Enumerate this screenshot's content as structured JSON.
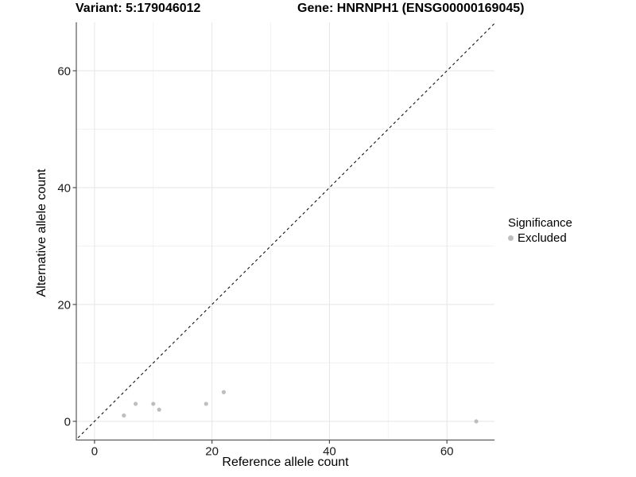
{
  "chart_data": {
    "type": "scatter",
    "title_left": "Variant: 5:179046012",
    "title_right": "Gene: HNRNPH1 (ENSG00000169045)",
    "xlabel": "Reference allele count",
    "ylabel": "Alternative allele count",
    "x_ticks": [
      0,
      20,
      40,
      60
    ],
    "x_minor_ticks": [
      10,
      30,
      50
    ],
    "y_ticks": [
      0,
      20,
      40,
      60
    ],
    "y_minor_ticks": [
      10,
      30,
      50
    ],
    "xlim": [
      -3.1,
      68.1
    ],
    "ylim": [
      -3.2,
      68.3
    ],
    "grid": "major+minor",
    "identity_line": {
      "type": "abline",
      "slope": 1,
      "intercept": 0,
      "style": "dashed",
      "color": "#111111"
    },
    "series": [
      {
        "name": "Excluded",
        "color": "#bebebe",
        "points": [
          {
            "x": 5,
            "y": 1
          },
          {
            "x": 7,
            "y": 3
          },
          {
            "x": 10,
            "y": 3
          },
          {
            "x": 11,
            "y": 2
          },
          {
            "x": 19,
            "y": 3
          },
          {
            "x": 22,
            "y": 5
          },
          {
            "x": 65,
            "y": 0
          }
        ]
      }
    ],
    "legend": {
      "title": "Significance",
      "position": "right",
      "entries": [
        {
          "label": "Excluded",
          "color": "#bebebe"
        }
      ]
    },
    "colors": {
      "axis_line": "#595959",
      "tick_mark": "#4d4d4d",
      "grid_major": "#e6e6e6",
      "grid_minor": "#f2f2f2",
      "tick_label": "#1a1a1a",
      "point": "#bebebe"
    }
  }
}
